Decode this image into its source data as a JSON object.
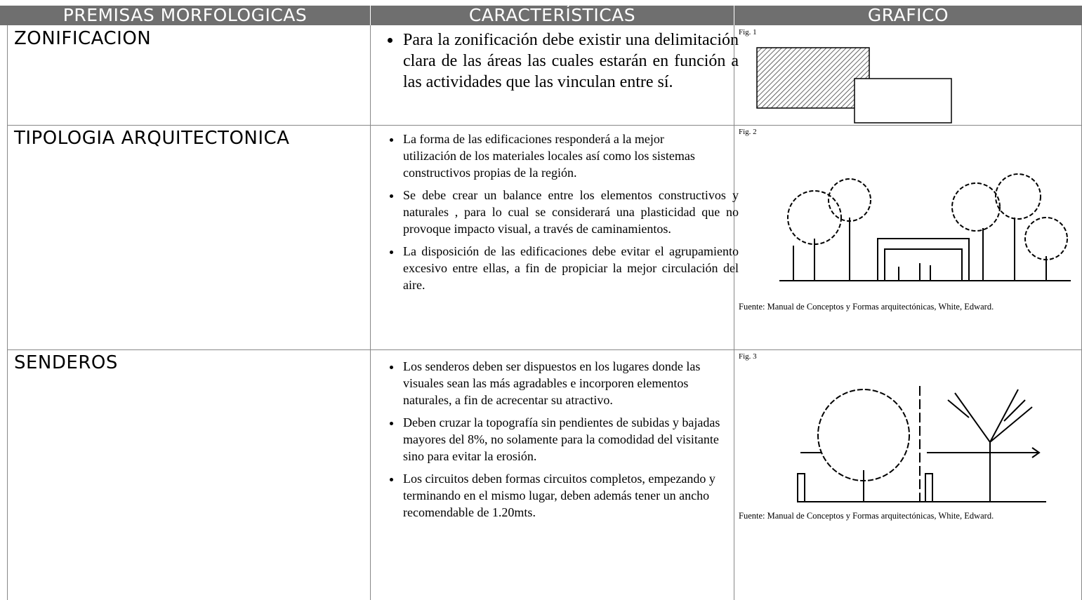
{
  "table": {
    "header": [
      "PREMISAS MORFOLOGICAS",
      "CARACTERÍSTICAS",
      "GRAFICO"
    ],
    "rows": [
      {
        "premise": "ZONIFICACION",
        "items": [
          "Para la zonificación debe existir una delimitación clara de las áreas las cuales estarán en función a las actividades que las vinculan entre sí."
        ],
        "figure": "Fig. 1"
      },
      {
        "premise": "TIPOLOGIA ARQUITECTONICA",
        "items": [
          "La forma de las edificaciones responderá a la mejor utilización de los materiales locales así como los sistemas constructivos propias de la región.",
          "Se debe crear un balance entre los elementos constructivos y naturales , para lo cual se considerará una plasticidad que no provoque impacto visual, a través de caminamientos.",
          "La disposición de las edificaciones debe  evitar el agrupamiento excesivo entre ellas, a fin de propiciar la mejor circulación del aire."
        ],
        "figure": "Fig. 2",
        "source": "Fuente: Manual de Conceptos y Formas arquitectónicas, White, Edward."
      },
      {
        "premise": "SENDEROS",
        "items": [
          "Los senderos deben ser dispuestos en los lugares donde las visuales sean las más agradables e incorporen elementos naturales, a fin de acrecentar su atractivo.",
          "Deben cruzar la topografía sin pendientes de subidas y bajadas mayores del 8%, no solamente para la comodidad del visitante sino para evitar la erosión.",
          "Los circuitos deben formas circuitos completos, empezando y terminando en el mismo lugar, deben además tener un ancho recomendable de 1.20mts."
        ],
        "figure": "Fig. 3",
        "source": "Fuente: Manual de Conceptos y Formas arquitectónicas, White, Edward."
      }
    ]
  }
}
